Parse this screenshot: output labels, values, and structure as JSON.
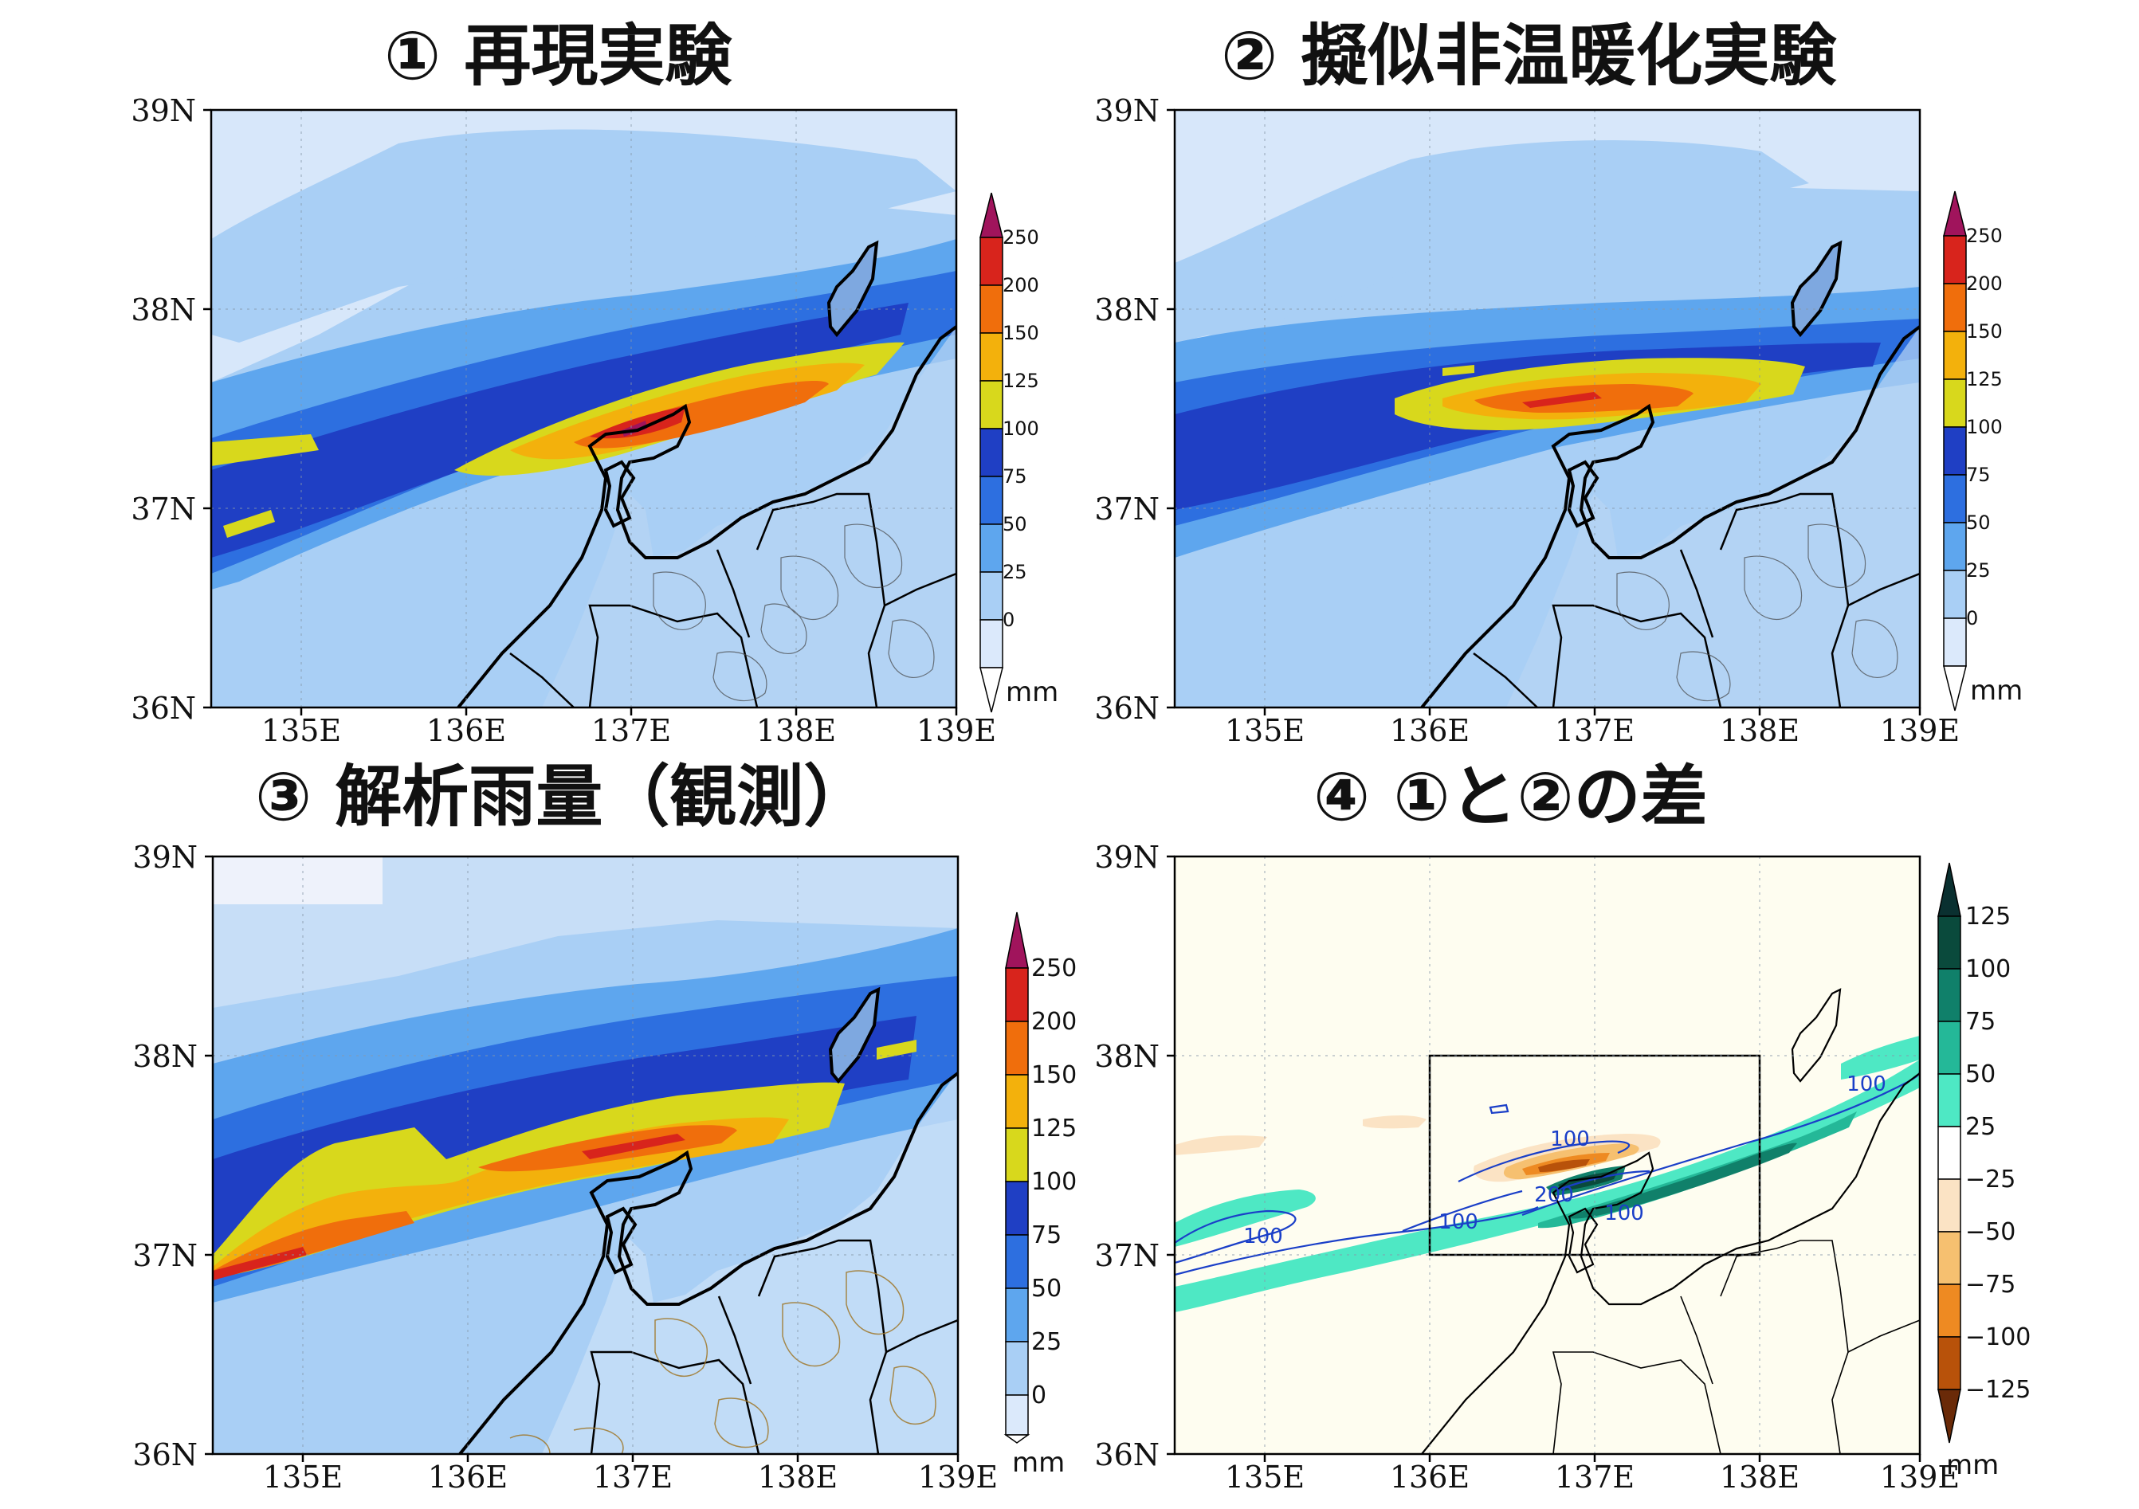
{
  "panels": [
    {
      "id": "p1",
      "title": "① 再現実験",
      "lat_labels": [
        "39N",
        "38N",
        "37N",
        "36N"
      ],
      "lon_labels": [
        "135E",
        "136E",
        "137E",
        "138E",
        "139E"
      ],
      "colorbar": {
        "labels": [
          "250",
          "200",
          "150",
          "125",
          "100",
          "75",
          "50",
          "25",
          "0"
        ],
        "unit": "mm"
      }
    },
    {
      "id": "p2",
      "title": "② 擬似非温暖化実験",
      "lat_labels": [
        "39N",
        "38N",
        "37N",
        "36N"
      ],
      "lon_labels": [
        "135E",
        "136E",
        "137E",
        "138E",
        "139E"
      ],
      "colorbar": {
        "labels": [
          "250",
          "200",
          "150",
          "125",
          "100",
          "75",
          "50",
          "25",
          "0"
        ],
        "unit": "mm"
      }
    },
    {
      "id": "p3",
      "title": "③ 解析雨量（観測）",
      "lat_labels": [
        "39N",
        "38N",
        "37N",
        "36N"
      ],
      "lon_labels": [
        "135E",
        "136E",
        "137E",
        "138E",
        "139E"
      ],
      "colorbar": {
        "labels": [
          "250",
          "200",
          "150",
          "125",
          "100",
          "75",
          "50",
          "25",
          "0"
        ],
        "unit": "mm"
      }
    },
    {
      "id": "p4",
      "title": "④ ①と②の差",
      "lat_labels": [
        "39N",
        "38N",
        "37N",
        "36N"
      ],
      "lon_labels": [
        "135E",
        "136E",
        "137E",
        "138E",
        "139E"
      ],
      "colorbar": {
        "labels": [
          "125",
          "100",
          "75",
          "50",
          "25",
          "−25",
          "−50",
          "−75",
          "−100",
          "−125"
        ],
        "unit": "mm"
      },
      "contour_labels": [
        "100",
        "100",
        "100",
        "100",
        "100",
        "200"
      ]
    }
  ],
  "colors": {
    "precip_scale": [
      "#dbe9fb",
      "#a9cff5",
      "#5ea6ee",
      "#2d6fe0",
      "#1f3fc4",
      "#d8d81c",
      "#f3b10c",
      "#f06e0c",
      "#d8241c",
      "#a0145c"
    ],
    "diff_positive": [
      "#4ee8c4",
      "#24b898",
      "#10806a",
      "#0a4a3c"
    ],
    "diff_negative": [
      "#fbe3c4",
      "#f6c070",
      "#ee8a22",
      "#b8520a",
      "#6a2a08"
    ],
    "diff_neutral": "#fefdf0",
    "contour": "#1a3fc8"
  }
}
